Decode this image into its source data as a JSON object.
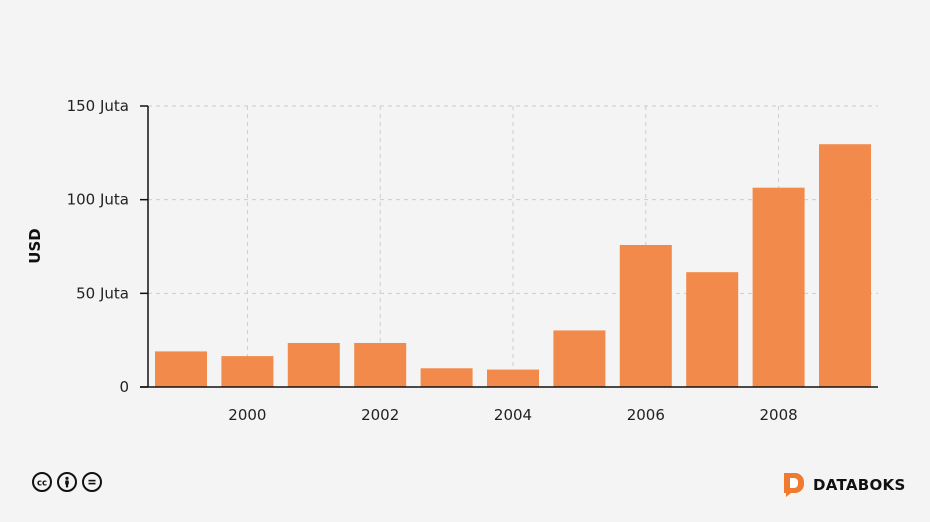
{
  "chart_data": {
    "type": "bar",
    "categories": [
      "1999",
      "2000",
      "2001",
      "2002",
      "2003",
      "2004",
      "2005",
      "2006",
      "2007",
      "2008",
      "2009"
    ],
    "values": [
      19000000,
      16500000,
      23500000,
      23500000,
      10000000,
      9300000,
      30200000,
      75800000,
      61300000,
      106400000,
      129600000
    ],
    "x_tick_labels": [
      "2000",
      "2002",
      "2004",
      "2006",
      "2008"
    ],
    "y_ticks": [
      0,
      50000000,
      100000000,
      150000000
    ],
    "y_tick_labels": [
      "0",
      "50 Juta",
      "100 Juta",
      "150 Juta"
    ],
    "ylim": [
      0,
      150000000
    ],
    "xlabel": "",
    "ylabel": "USD",
    "grid": true,
    "bar_color": "#f28a4c"
  },
  "footer": {
    "license_icons": [
      "cc-icon",
      "attribution-icon",
      "no-derivatives-icon"
    ],
    "brand_name": "DATABOKS",
    "brand_color": "#f07a30"
  }
}
